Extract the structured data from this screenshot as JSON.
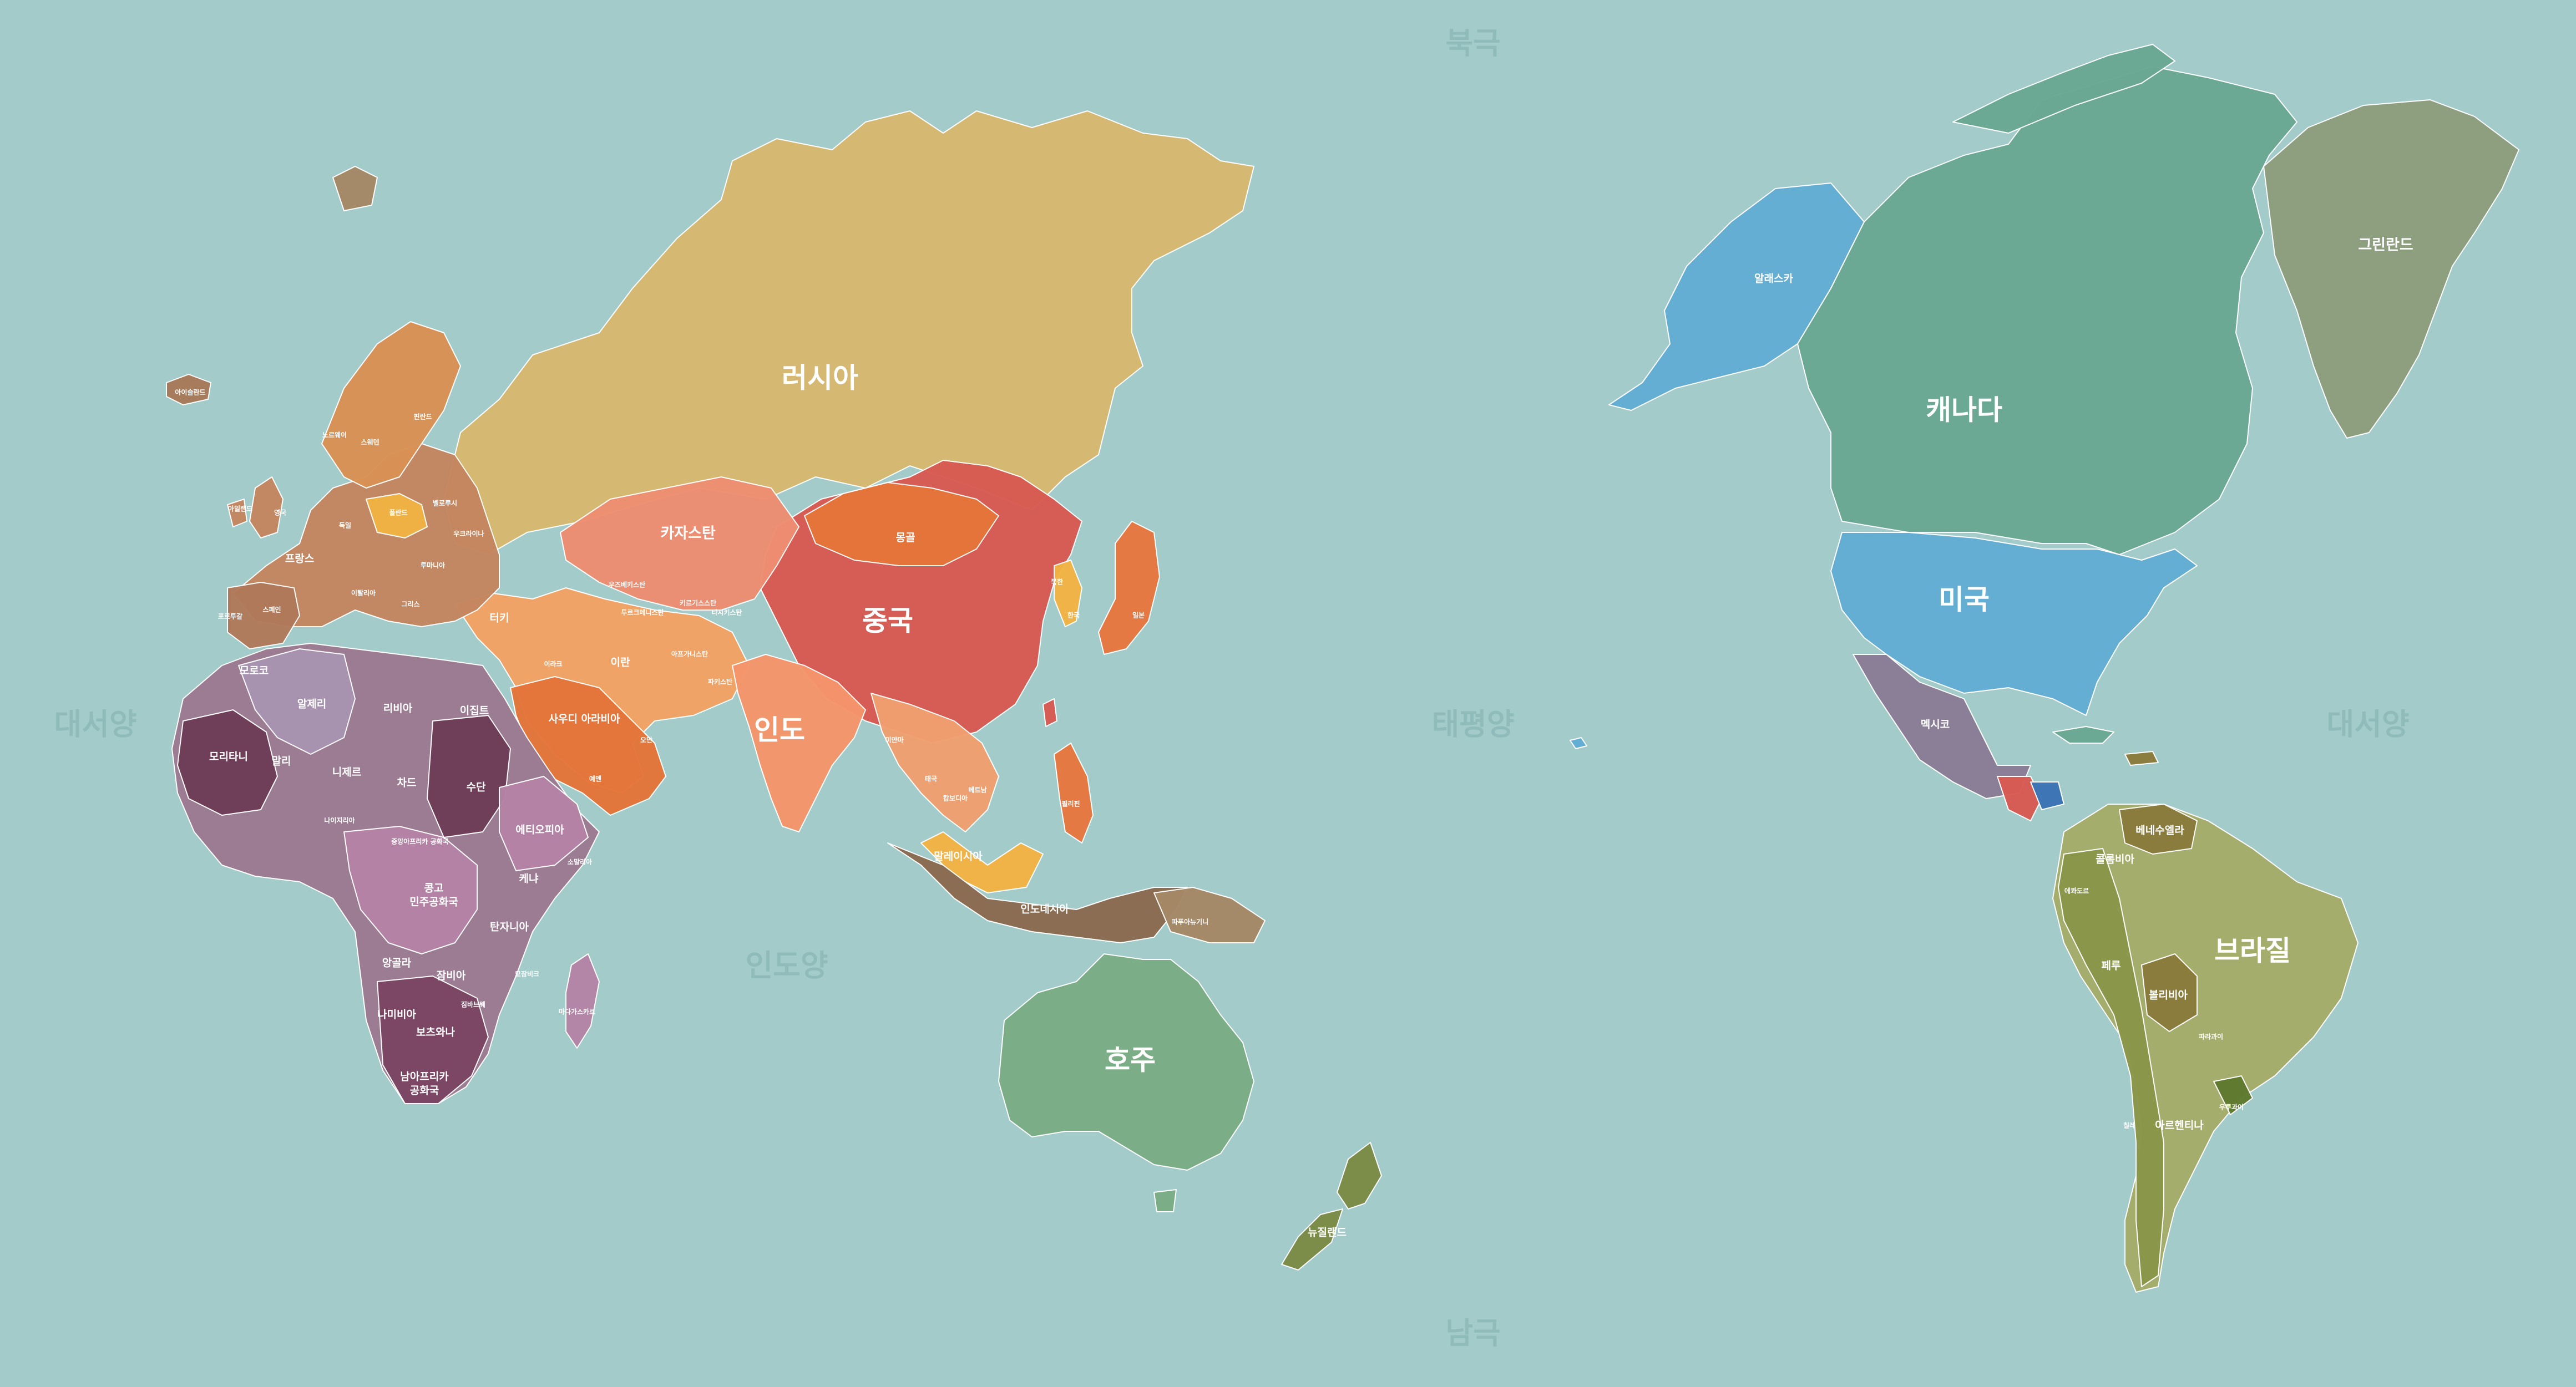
{
  "directions": {
    "north": "북극",
    "south": "남극",
    "atlantic_west": "대서양",
    "atlantic_east": "대서양",
    "pacific": "태평양",
    "indian": "인도양"
  },
  "colors": {
    "ocean": "#a3cbca",
    "russia": "#d7b86f",
    "china": "#d85a52",
    "mongolia": "#e5753a",
    "australia": "#7aae84",
    "canada": "#6aa893",
    "usa": "#63aed4",
    "greenland": "#8e9e7e",
    "brazil": "#a6ad6a",
    "africa_dark": "#6e3d58",
    "africa_mid": "#9b7a92",
    "africa_light": "#b483a5"
  },
  "countries": {
    "russia": "러시아",
    "china": "중국",
    "mongolia": "몽골",
    "kazakhstan": "카자스탄",
    "india": "인도",
    "iran": "이란",
    "afghanistan": "아프가니스탄",
    "pakistan": "파키스탄",
    "turkey": "터키",
    "iraq": "이라크",
    "saudi": "사우디 아라비아",
    "yemen": "예멘",
    "oman": "오만",
    "japan": "일본",
    "korea": "한국",
    "north_korea": "북한",
    "myanmar": "미얀마",
    "thailand": "태국",
    "cambodia": "캄보디아",
    "vietnam": "베트남",
    "philippines": "필리핀",
    "malaysia": "말레이시아",
    "indonesia": "인도네시아",
    "png": "파푸아뉴기니",
    "australia": "호주",
    "new_zealand": "뉴질랜드",
    "uzbekistan": "우즈베키스탄",
    "turkmenistan": "투르크메니스탄",
    "kyrgyzstan": "키르기스스탄",
    "tajikistan": "타지키스탄",
    "norway": "노르웨이",
    "sweden": "스웨덴",
    "finland": "핀란드",
    "iceland": "아이슬란드",
    "uk": "영국",
    "ireland": "아일랜드",
    "france": "프랑스",
    "spain": "스페인",
    "portugal": "포르투갈",
    "germany": "독일",
    "poland": "폴란드",
    "italy": "이탈리아",
    "ukraine": "우크라이나",
    "belarus": "벨로루시",
    "romania": "루마니아",
    "greece": "그리스",
    "morocco": "모로코",
    "algeria": "알제리",
    "libya": "리비아",
    "egypt": "이집트",
    "mauritania": "모리타니",
    "mali": "말리",
    "niger": "니제르",
    "chad": "차드",
    "sudan": "수단",
    "ethiopia": "에티오피아",
    "somalia": "소말리아",
    "nigeria": "나이지리아",
    "car": "중앙아프리카 공화국",
    "drc_line1": "콩고",
    "drc_line2": "민주공화국",
    "kenya": "케냐",
    "tanzania": "탄자니아",
    "angola": "앙골라",
    "zambia": "잠비아",
    "namibia": "나미비아",
    "botswana": "보츠와나",
    "zimbabwe": "짐바브웨",
    "mozambique": "모잠비크",
    "madagascar": "마다가스카르",
    "south_africa_line1": "남아프리카",
    "south_africa_line2": "공화국",
    "alaska": "알래스카",
    "canada": "캐나다",
    "greenland": "그린란드",
    "usa": "미국",
    "mexico": "멕시코",
    "venezuela": "베네수엘라",
    "colombia": "콜롬비아",
    "ecuador": "에콰도르",
    "peru": "페루",
    "brazil": "브라질",
    "bolivia": "볼리비아",
    "paraguay": "파라과이",
    "chile": "칠레",
    "argentina": "아르헨티나",
    "uruguay": "우루과이"
  }
}
